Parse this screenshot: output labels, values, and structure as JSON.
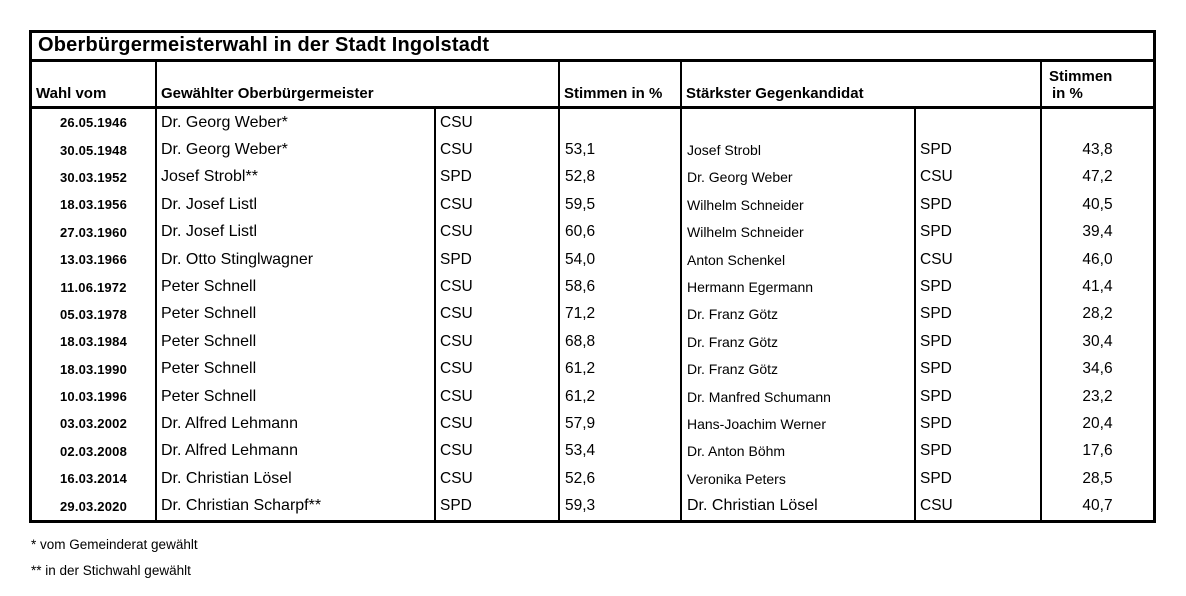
{
  "title": "Oberbürgermeisterwahl in der Stadt Ingolstadt",
  "columns": {
    "date": "Wahl vom",
    "mayor": "Gewählter Oberbürgermeister",
    "mayor_pct": "Stimmen in %",
    "opponent": "Stärkster Gegenkandidat",
    "opponent_pct_line1": "Stimmen",
    "opponent_pct_line2": "in %"
  },
  "rows": [
    {
      "date": "26.05.1946",
      "mayor": "Dr. Georg Weber*",
      "mayor_party": "CSU",
      "mayor_pct": "",
      "opponent": "",
      "opponent_party": "",
      "opponent_pct": ""
    },
    {
      "date": "30.05.1948",
      "mayor": "Dr. Georg Weber*",
      "mayor_party": "CSU",
      "mayor_pct": "53,1",
      "opponent": "Josef Strobl",
      "opponent_party": "SPD",
      "opponent_pct": "43,8"
    },
    {
      "date": "30.03.1952",
      "mayor": "Josef Strobl**",
      "mayor_party": "SPD",
      "mayor_pct": "52,8",
      "opponent": "Dr. Georg Weber",
      "opponent_party": "CSU",
      "opponent_pct": "47,2"
    },
    {
      "date": "18.03.1956",
      "mayor": "Dr. Josef Listl",
      "mayor_party": "CSU",
      "mayor_pct": "59,5",
      "opponent": "Wilhelm Schneider",
      "opponent_party": "SPD",
      "opponent_pct": "40,5"
    },
    {
      "date": "27.03.1960",
      "mayor": "Dr. Josef Listl",
      "mayor_party": "CSU",
      "mayor_pct": "60,6",
      "opponent": "Wilhelm Schneider",
      "opponent_party": "SPD",
      "opponent_pct": "39,4"
    },
    {
      "date": "13.03.1966",
      "mayor": "Dr. Otto Stinglwagner",
      "mayor_party": "SPD",
      "mayor_pct": "54,0",
      "opponent": "Anton Schenkel",
      "opponent_party": "CSU",
      "opponent_pct": "46,0"
    },
    {
      "date": "11.06.1972",
      "mayor": "Peter Schnell",
      "mayor_party": "CSU",
      "mayor_pct": "58,6",
      "opponent": "Hermann Egermann",
      "opponent_party": "SPD",
      "opponent_pct": "41,4"
    },
    {
      "date": "05.03.1978",
      "mayor": "Peter Schnell",
      "mayor_party": "CSU",
      "mayor_pct": "71,2",
      "opponent": "Dr. Franz Götz",
      "opponent_party": "SPD",
      "opponent_pct": "28,2"
    },
    {
      "date": "18.03.1984",
      "mayor": "Peter Schnell",
      "mayor_party": "CSU",
      "mayor_pct": "68,8",
      "opponent": "Dr. Franz Götz",
      "opponent_party": "SPD",
      "opponent_pct": "30,4"
    },
    {
      "date": "18.03.1990",
      "mayor": "Peter Schnell",
      "mayor_party": "CSU",
      "mayor_pct": "61,2",
      "opponent": "Dr. Franz Götz",
      "opponent_party": "SPD",
      "opponent_pct": "34,6"
    },
    {
      "date": "10.03.1996",
      "mayor": "Peter Schnell",
      "mayor_party": "CSU",
      "mayor_pct": "61,2",
      "opponent": "Dr. Manfred Schumann",
      "opponent_party": "SPD",
      "opponent_pct": "23,2"
    },
    {
      "date": "03.03.2002",
      "mayor": "Dr. Alfred Lehmann",
      "mayor_party": "CSU",
      "mayor_pct": "57,9",
      "opponent": "Hans-Joachim Werner",
      "opponent_party": "SPD",
      "opponent_pct": "20,4"
    },
    {
      "date": "02.03.2008",
      "mayor": "Dr. Alfred Lehmann",
      "mayor_party": "CSU",
      "mayor_pct": "53,4",
      "opponent": "Dr. Anton Böhm",
      "opponent_party": "SPD",
      "opponent_pct": "17,6"
    },
    {
      "date": "16.03.2014",
      "mayor": "Dr. Christian Lösel",
      "mayor_party": "CSU",
      "mayor_pct": "52,6",
      "opponent": "Veronika Peters",
      "opponent_party": "SPD",
      "opponent_pct": "28,5"
    },
    {
      "date": "29.03.2020",
      "mayor": "Dr. Christian Scharpf**",
      "mayor_party": "SPD",
      "mayor_pct": "59,3",
      "opponent": "Dr. Christian Lösel",
      "opponent_party": "CSU",
      "opponent_pct": "40,7"
    }
  ],
  "footnotes": [
    "* vom Gemeinderat gewählt",
    "** in der Stichwahl gewählt"
  ],
  "colors": {
    "border": "#000000",
    "text": "#000000",
    "background": "#ffffff"
  }
}
